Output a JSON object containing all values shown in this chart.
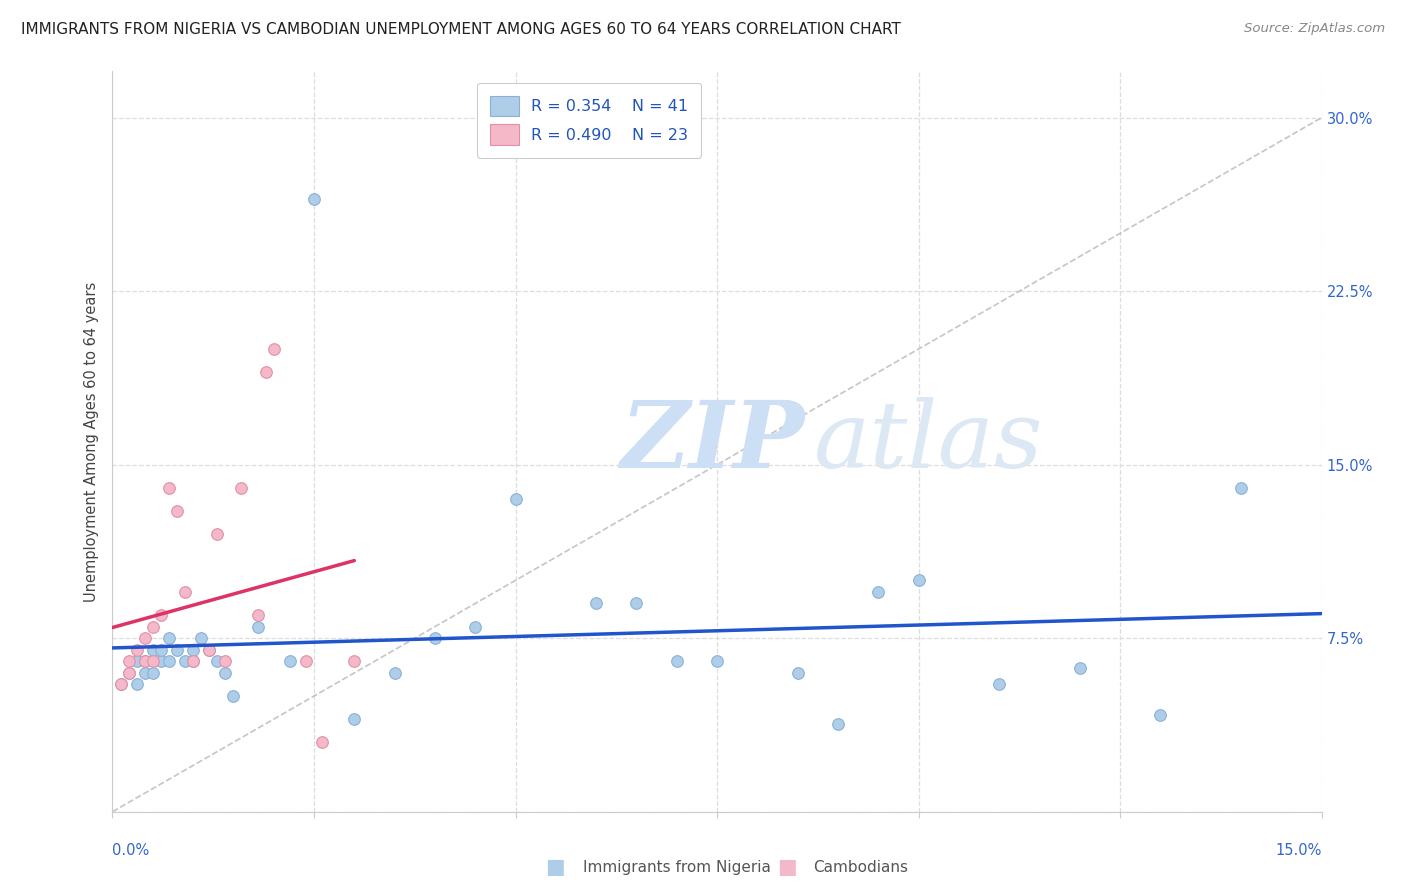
{
  "title": "IMMIGRANTS FROM NIGERIA VS CAMBODIAN UNEMPLOYMENT AMONG AGES 60 TO 64 YEARS CORRELATION CHART",
  "source": "Source: ZipAtlas.com",
  "ylabel": "Unemployment Among Ages 60 to 64 years",
  "xlim": [
    0.0,
    0.15
  ],
  "ylim": [
    0.0,
    0.32
  ],
  "yticks": [
    0.0,
    0.075,
    0.15,
    0.225,
    0.3
  ],
  "ytick_labels": [
    "",
    "7.5%",
    "15.0%",
    "22.5%",
    "30.0%"
  ],
  "legend_r1": "R = 0.354",
  "legend_n1": "N = 41",
  "legend_r2": "R = 0.490",
  "legend_n2": "N = 23",
  "nigeria_color": "#aecde8",
  "cambodian_color": "#f4b8c8",
  "nigeria_line_color": "#2255cc",
  "cambodian_line_color": "#dd3366",
  "diag_line_color": "#bbbbbb",
  "watermark_zip": "ZIP",
  "watermark_atlas": "atlas",
  "background_color": "#ffffff",
  "grid_color": "#dddddd",
  "nigeria_x": [
    0.001,
    0.002,
    0.003,
    0.003,
    0.004,
    0.004,
    0.005,
    0.005,
    0.006,
    0.006,
    0.007,
    0.007,
    0.008,
    0.009,
    0.01,
    0.01,
    0.011,
    0.012,
    0.013,
    0.014,
    0.015,
    0.018,
    0.022,
    0.025,
    0.03,
    0.035,
    0.04,
    0.045,
    0.05,
    0.06,
    0.065,
    0.07,
    0.075,
    0.085,
    0.09,
    0.095,
    0.1,
    0.11,
    0.12,
    0.13,
    0.14
  ],
  "nigeria_y": [
    0.055,
    0.06,
    0.055,
    0.065,
    0.06,
    0.065,
    0.06,
    0.07,
    0.065,
    0.07,
    0.065,
    0.075,
    0.07,
    0.065,
    0.065,
    0.07,
    0.075,
    0.07,
    0.065,
    0.06,
    0.05,
    0.08,
    0.065,
    0.265,
    0.04,
    0.06,
    0.075,
    0.08,
    0.135,
    0.09,
    0.09,
    0.065,
    0.065,
    0.06,
    0.038,
    0.095,
    0.1,
    0.055,
    0.062,
    0.042,
    0.14
  ],
  "cambodian_x": [
    0.001,
    0.002,
    0.002,
    0.003,
    0.004,
    0.004,
    0.005,
    0.005,
    0.006,
    0.007,
    0.008,
    0.009,
    0.01,
    0.012,
    0.013,
    0.014,
    0.016,
    0.018,
    0.019,
    0.02,
    0.024,
    0.026,
    0.03
  ],
  "cambodian_y": [
    0.055,
    0.06,
    0.065,
    0.07,
    0.065,
    0.075,
    0.065,
    0.08,
    0.085,
    0.14,
    0.13,
    0.095,
    0.065,
    0.07,
    0.12,
    0.065,
    0.14,
    0.085,
    0.19,
    0.2,
    0.065,
    0.03,
    0.065
  ]
}
